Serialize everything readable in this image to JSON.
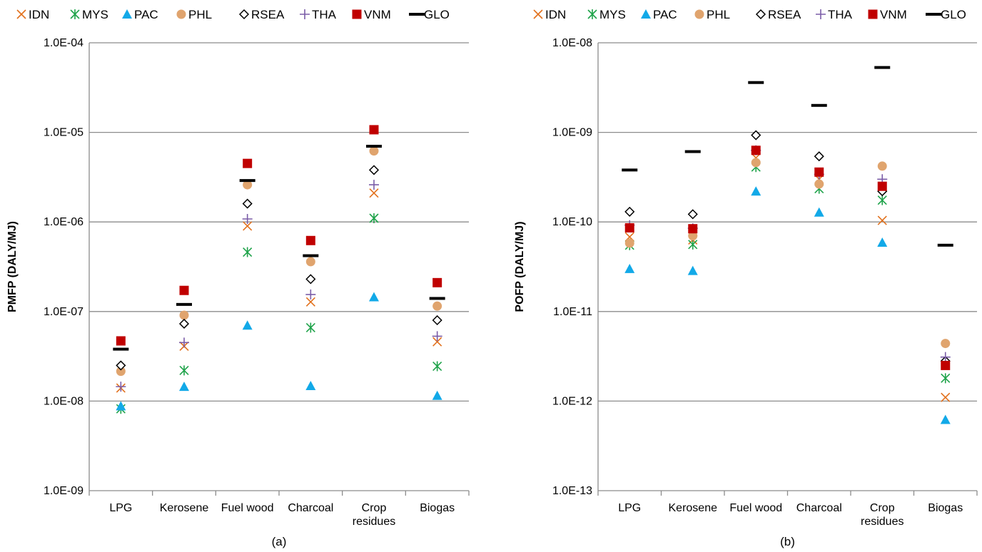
{
  "chart_data": [
    {
      "type": "scatter",
      "id": "a",
      "caption": "(a)",
      "ylabel": "PMFP (DALY/MJ)",
      "yscale": "log",
      "ylim": [
        1e-09,
        0.0001
      ],
      "y_tick_labels": [
        "1.0E-09",
        "1.0E-08",
        "1.0E-07",
        "1.0E-06",
        "1.0E-05",
        "1.0E-04"
      ],
      "categories": [
        [
          "LPG"
        ],
        [
          "Kerosene"
        ],
        [
          "Fuel wood"
        ],
        [
          "Charcoal"
        ],
        [
          "Crop",
          "residues"
        ],
        [
          "Biogas"
        ]
      ],
      "series": [
        {
          "name": "IDN",
          "marker": "x",
          "color": "#E2711D",
          "values": [
            1.4e-08,
            4.1e-08,
            9e-07,
            1.28e-07,
            2.1e-06,
            4.6e-08
          ]
        },
        {
          "name": "MYS",
          "marker": "asterisk",
          "color": "#1FA34A",
          "values": [
            8.2e-09,
            2.2e-08,
            4.6e-07,
            6.6e-08,
            1.1e-06,
            2.45e-08
          ]
        },
        {
          "name": "PAC",
          "marker": "triangle",
          "color": "#12A9E8",
          "values": [
            8.8e-09,
            1.45e-08,
            7e-08,
            1.48e-08,
            1.45e-07,
            1.15e-08
          ]
        },
        {
          "name": "PHL",
          "marker": "circle",
          "color": "#E0A46E",
          "values": [
            2.15e-08,
            9.1e-08,
            2.6e-06,
            3.6e-07,
            6.2e-06,
            1.15e-07
          ]
        },
        {
          "name": "RSEA",
          "marker": "diamond",
          "color": "#000000",
          "values": [
            2.5e-08,
            7.3e-08,
            1.6e-06,
            2.3e-07,
            3.8e-06,
            8e-08
          ]
        },
        {
          "name": "THA",
          "marker": "plus",
          "color": "#7B5DA8",
          "values": [
            1.45e-08,
            4.5e-08,
            1.08e-06,
            1.55e-07,
            2.6e-06,
            5.3e-08
          ]
        },
        {
          "name": "VNM",
          "marker": "square",
          "color": "#C00000",
          "values": [
            4.7e-08,
            1.72e-07,
            4.5e-06,
            6.2e-07,
            1.07e-05,
            2.1e-07
          ]
        },
        {
          "name": "GLO",
          "marker": "dash",
          "color": "#000000",
          "values": [
            3.8e-08,
            1.2e-07,
            2.9e-06,
            4.2e-07,
            7e-06,
            1.4e-07
          ]
        }
      ]
    },
    {
      "type": "scatter",
      "id": "b",
      "caption": "(b)",
      "ylabel": "POFP (DALY/MJ)",
      "yscale": "log",
      "ylim": [
        1e-13,
        1e-08
      ],
      "y_tick_labels": [
        "1.0E-13",
        "1.0E-12",
        "1.0E-11",
        "1.0E-10",
        "1.0E-09",
        "1.0E-08"
      ],
      "categories": [
        [
          "LPG"
        ],
        [
          "Kerosene"
        ],
        [
          "Fuel wood"
        ],
        [
          "Charcoal"
        ],
        [
          "Crop",
          "residues"
        ],
        [
          "Biogas"
        ]
      ],
      "series": [
        {
          "name": "IDN",
          "marker": "x",
          "color": "#E2711D",
          "values": [
            6.8e-11,
            6.3e-11,
            5.2e-10,
            3e-10,
            1.04e-10,
            1.1e-12
          ]
        },
        {
          "name": "MYS",
          "marker": "asterisk",
          "color": "#1FA34A",
          "values": [
            5.5e-11,
            5.6e-11,
            4.1e-10,
            2.35e-10,
            1.75e-10,
            1.8e-12
          ]
        },
        {
          "name": "PAC",
          "marker": "triangle",
          "color": "#12A9E8",
          "values": [
            3e-11,
            2.85e-11,
            2.2e-10,
            1.28e-10,
            5.9e-11,
            6.2e-13
          ]
        },
        {
          "name": "PHL",
          "marker": "circle",
          "color": "#E0A46E",
          "values": [
            5.8e-11,
            7e-11,
            4.6e-10,
            2.65e-10,
            4.2e-10,
            4.4e-12
          ]
        },
        {
          "name": "RSEA",
          "marker": "diamond",
          "color": "#000000",
          "values": [
            1.3e-10,
            1.22e-10,
            9.3e-10,
            5.4e-10,
            2.2e-10,
            2.8e-12
          ]
        },
        {
          "name": "THA",
          "marker": "plus",
          "color": "#7B5DA8",
          "values": [
            9.2e-11,
            8.5e-11,
            6.3e-10,
            3.4e-10,
            3e-10,
            3.1e-12
          ]
        },
        {
          "name": "VNM",
          "marker": "square",
          "color": "#C00000",
          "values": [
            8.6e-11,
            8.4e-11,
            6.3e-10,
            3.6e-10,
            2.5e-10,
            2.5e-12
          ]
        },
        {
          "name": "GLO",
          "marker": "dash",
          "color": "#000000",
          "values": [
            3.8e-10,
            6.1e-10,
            3.6e-09,
            2e-09,
            5.3e-09,
            5.5e-11
          ]
        }
      ]
    }
  ]
}
